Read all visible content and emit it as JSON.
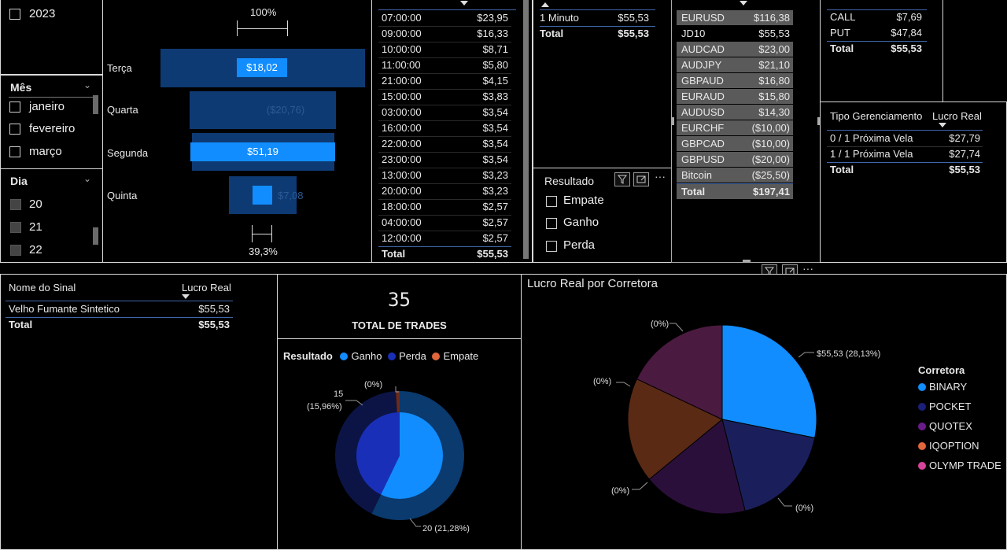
{
  "year_slicer": {
    "items": [
      "2023"
    ]
  },
  "month_slicer": {
    "title": "Mês",
    "items": [
      "janeiro",
      "fevereiro",
      "março"
    ]
  },
  "day_slicer": {
    "title": "Dia",
    "items": [
      "20",
      "21",
      "22"
    ]
  },
  "funnel": {
    "top_pct": "100%",
    "bottom_pct": "39,3%",
    "rows": [
      {
        "day": "Terça",
        "value": "$18,02"
      },
      {
        "day": "Quarta",
        "value": "($20,76)"
      },
      {
        "day": "Segunda",
        "value": "$51,19"
      },
      {
        "day": "Quinta",
        "value": "$7,08"
      }
    ]
  },
  "time_table": {
    "rows": [
      [
        "07:00:00",
        "$23,95"
      ],
      [
        "09:00:00",
        "$16,33"
      ],
      [
        "10:00:00",
        "$8,71"
      ],
      [
        "11:00:00",
        "$5,80"
      ],
      [
        "21:00:00",
        "$4,15"
      ],
      [
        "15:00:00",
        "$3,83"
      ],
      [
        "03:00:00",
        "$3,54"
      ],
      [
        "16:00:00",
        "$3,54"
      ],
      [
        "22:00:00",
        "$3,54"
      ],
      [
        "23:00:00",
        "$3,54"
      ],
      [
        "13:00:00",
        "$3,23"
      ],
      [
        "20:00:00",
        "$3,23"
      ],
      [
        "18:00:00",
        "$2,57"
      ],
      [
        "04:00:00",
        "$2,57"
      ],
      [
        "12:00:00",
        "$2,57"
      ]
    ],
    "total_label": "Total",
    "total_value": "$55,53"
  },
  "timeframe_table": {
    "rows": [
      [
        "1 Minuto",
        "$55,53"
      ]
    ],
    "total_label": "Total",
    "total_value": "$55,53"
  },
  "result_slicer": {
    "title": "Resultado",
    "items": [
      "Empate",
      "Ganho",
      "Perda"
    ]
  },
  "pair_table": {
    "rows": [
      [
        "EURUSD",
        "$116,38"
      ],
      [
        "JD10",
        "$55,53"
      ],
      [
        "AUDCAD",
        "$23,00"
      ],
      [
        "AUDJPY",
        "$21,10"
      ],
      [
        "GBPAUD",
        "$16,80"
      ],
      [
        "EURAUD",
        "$15,80"
      ],
      [
        "AUDUSD",
        "$14,30"
      ],
      [
        "EURCHF",
        "($10,00)"
      ],
      [
        "GBPCAD",
        "($10,00)"
      ],
      [
        "GBPUSD",
        "($20,00)"
      ],
      [
        "Bitcoin",
        "($25,50)"
      ]
    ],
    "total_label": "Total",
    "total_value": "$197,41"
  },
  "direction_table": {
    "rows": [
      [
        "CALL",
        "$7,69"
      ],
      [
        "PUT",
        "$47,84"
      ]
    ],
    "total_label": "Total",
    "total_value": "$55,53"
  },
  "management_table": {
    "headers": [
      "Tipo Gerenciamento",
      "Lucro Real"
    ],
    "rows": [
      [
        "0 / 1 Próxima Vela",
        "$27,79"
      ],
      [
        "1 / 1 Próxima Vela",
        "$27,74"
      ]
    ],
    "total_label": "Total",
    "total_value": "$55,53"
  },
  "signal_table": {
    "headers": [
      "Nome do Sinal",
      "Lucro Real"
    ],
    "rows": [
      [
        "Velho Fumante Sintetico",
        "$55,53"
      ]
    ],
    "total_label": "Total",
    "total_value": "$55,53"
  },
  "card": {
    "value": "35",
    "label": "TOTAL DE TRADES"
  },
  "donut": {
    "legend_title": "Resultado",
    "label_top": "(0%)",
    "label_left_count": "15",
    "label_left_pct": "(15,96%)",
    "label_bottom": "20 (21,28%)"
  },
  "pie": {
    "title": "Lucro Real por Corretora",
    "legend_title": "Corretora",
    "label_top_left": "(0%)",
    "label_left": "(0%)",
    "label_bottom_left": "(0%)",
    "label_bottom_right": "(0%)",
    "label_right": "$55,53 (28,13%)"
  },
  "chart_data": [
    {
      "type": "pie",
      "title": "Resultado",
      "series": [
        {
          "name": "Ganho",
          "values": [
            20
          ]
        },
        {
          "name": "Perda",
          "values": [
            15
          ]
        },
        {
          "name": "Empate",
          "values": [
            0
          ]
        }
      ],
      "colors": {
        "Ganho": "#118dff",
        "Perda": "#1a2fb8",
        "Empate": "#e0663c"
      }
    },
    {
      "type": "pie",
      "title": "Lucro Real por Corretora",
      "categories": [
        "BINARY",
        "POCKET",
        "QUOTEX",
        "IQOPTION",
        "OLYMP TRADE"
      ],
      "values": [
        55.53,
        0,
        0,
        0,
        0
      ],
      "percent_labels": [
        "28,13%",
        "0%",
        "0%",
        "0%",
        "0%"
      ],
      "colors": {
        "BINARY": "#118dff",
        "POCKET": "#1b1f7a",
        "QUOTEX": "#6a1b8a",
        "IQOPTION": "#e0663c",
        "OLYMP TRADE": "#d6439b"
      }
    }
  ],
  "colors": {
    "accent": "#118dff",
    "dark_blue": "#0e3a73",
    "table_line": "#3f66a8"
  }
}
